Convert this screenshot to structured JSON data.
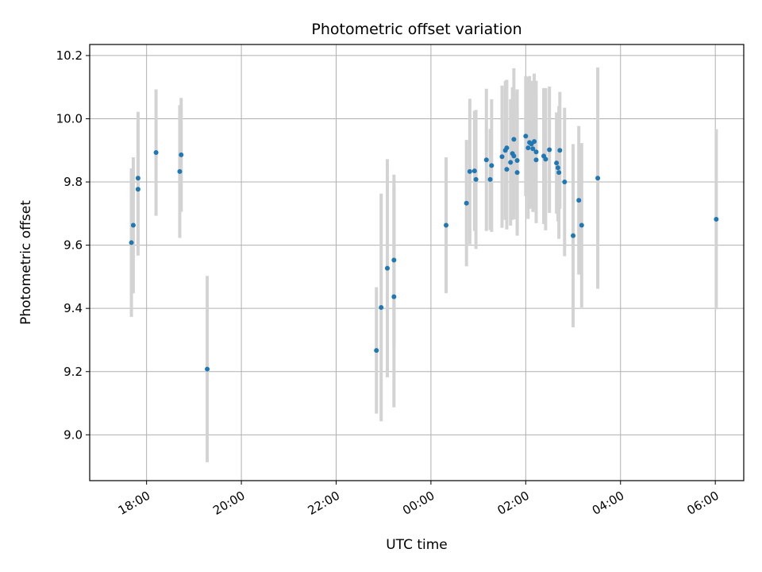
{
  "chart_data": {
    "type": "scatter",
    "title": "Photometric offset variation",
    "xlabel": "UTC time",
    "ylabel": "Photometric offset",
    "x_ticks": [
      "18:00",
      "20:00",
      "22:00",
      "00:00",
      "02:00",
      "04:00",
      "06:00"
    ],
    "y_ticks": [
      "9.0",
      "9.2",
      "9.4",
      "9.6",
      "9.8",
      "10.0",
      "10.2"
    ],
    "x_unit": "hours since 00:00 UTC",
    "xlim": [
      -7.2,
      6.6
    ],
    "ylim": [
      8.855,
      10.235
    ],
    "grid": true,
    "point_color": "#1f77b4",
    "errorbar_color": "#d3d3d3",
    "points": [
      {
        "x": -6.32,
        "y": 9.608,
        "err": 0.235
      },
      {
        "x": -6.28,
        "y": 9.663,
        "err": 0.215
      },
      {
        "x": -6.18,
        "y": 9.812,
        "err": 0.21
      },
      {
        "x": -6.18,
        "y": 9.777,
        "err": 0.21
      },
      {
        "x": -5.8,
        "y": 9.893,
        "err": 0.2
      },
      {
        "x": -5.3,
        "y": 9.833,
        "err": 0.21
      },
      {
        "x": -5.27,
        "y": 9.886,
        "err": 0.18
      },
      {
        "x": -4.72,
        "y": 9.208,
        "err": 0.295
      },
      {
        "x": -1.15,
        "y": 9.267,
        "err": 0.2
      },
      {
        "x": -1.05,
        "y": 9.403,
        "err": 0.36
      },
      {
        "x": -0.92,
        "y": 9.527,
        "err": 0.345
      },
      {
        "x": -0.78,
        "y": 9.553,
        "err": 0.27
      },
      {
        "x": -0.78,
        "y": 9.437,
        "err": 0.35
      },
      {
        "x": 0.32,
        "y": 9.663,
        "err": 0.215
      },
      {
        "x": 0.75,
        "y": 9.733,
        "err": 0.2
      },
      {
        "x": 0.82,
        "y": 9.833,
        "err": 0.23
      },
      {
        "x": 0.92,
        "y": 9.835,
        "err": 0.19
      },
      {
        "x": 0.95,
        "y": 9.808,
        "err": 0.22
      },
      {
        "x": 1.17,
        "y": 9.87,
        "err": 0.225
      },
      {
        "x": 1.25,
        "y": 9.808,
        "err": 0.16
      },
      {
        "x": 1.28,
        "y": 9.852,
        "err": 0.21
      },
      {
        "x": 1.5,
        "y": 9.88,
        "err": 0.225
      },
      {
        "x": 1.57,
        "y": 9.9,
        "err": 0.22
      },
      {
        "x": 1.6,
        "y": 9.908,
        "err": 0.215
      },
      {
        "x": 1.6,
        "y": 9.84,
        "err": 0.19
      },
      {
        "x": 1.68,
        "y": 9.862,
        "err": 0.2
      },
      {
        "x": 1.72,
        "y": 9.89,
        "err": 0.21
      },
      {
        "x": 1.75,
        "y": 9.935,
        "err": 0.225
      },
      {
        "x": 1.75,
        "y": 9.882,
        "err": 0.2
      },
      {
        "x": 1.82,
        "y": 9.83,
        "err": 0.2
      },
      {
        "x": 1.82,
        "y": 9.868,
        "err": 0.225
      },
      {
        "x": 2.0,
        "y": 9.945,
        "err": 0.19
      },
      {
        "x": 2.05,
        "y": 9.908,
        "err": 0.225
      },
      {
        "x": 2.08,
        "y": 9.925,
        "err": 0.21
      },
      {
        "x": 2.12,
        "y": 9.92,
        "err": 0.2
      },
      {
        "x": 2.15,
        "y": 9.905,
        "err": 0.2
      },
      {
        "x": 2.18,
        "y": 9.928,
        "err": 0.215
      },
      {
        "x": 2.22,
        "y": 9.895,
        "err": 0.225
      },
      {
        "x": 2.22,
        "y": 9.87,
        "err": 0.2
      },
      {
        "x": 2.38,
        "y": 9.882,
        "err": 0.215
      },
      {
        "x": 2.42,
        "y": 9.872,
        "err": 0.225
      },
      {
        "x": 2.5,
        "y": 9.902,
        "err": 0.2
      },
      {
        "x": 2.65,
        "y": 9.86,
        "err": 0.16
      },
      {
        "x": 2.68,
        "y": 9.845,
        "err": 0.17
      },
      {
        "x": 2.7,
        "y": 9.83,
        "err": 0.21
      },
      {
        "x": 2.72,
        "y": 9.9,
        "err": 0.185
      },
      {
        "x": 2.82,
        "y": 9.8,
        "err": 0.235
      },
      {
        "x": 3.0,
        "y": 9.63,
        "err": 0.29
      },
      {
        "x": 3.12,
        "y": 9.742,
        "err": 0.235
      },
      {
        "x": 3.18,
        "y": 9.663,
        "err": 0.26
      },
      {
        "x": 3.52,
        "y": 9.812,
        "err": 0.35
      },
      {
        "x": 6.02,
        "y": 9.682,
        "err": 0.285
      }
    ]
  }
}
